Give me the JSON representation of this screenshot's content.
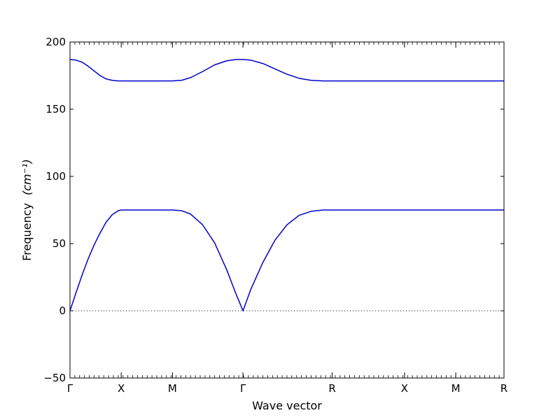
{
  "chart_data": {
    "type": "line",
    "xlabel": "Wave vector",
    "ylabel": "Frequency",
    "ylabel_unit": "(cm⁻¹)",
    "ylim": [
      -50,
      200
    ],
    "yticks": [
      -50,
      0,
      50,
      100,
      150,
      200
    ],
    "xlim": [
      0,
      7.2
    ],
    "xticks": [
      {
        "label": "Γ",
        "x": 0.0
      },
      {
        "label": "X",
        "x": 0.85
      },
      {
        "label": "M",
        "x": 1.7
      },
      {
        "label": "Γ",
        "x": 2.87
      },
      {
        "label": "R",
        "x": 4.35
      },
      {
        "label": "X",
        "x": 5.55
      },
      {
        "label": "M",
        "x": 6.4
      },
      {
        "label": "R",
        "x": 7.2
      }
    ],
    "zero_line": 0,
    "line_color": "#0000cc",
    "series": [
      {
        "x": [
          0,
          0.1,
          0.2,
          0.3,
          0.4,
          0.5,
          0.6,
          0.7,
          0.8,
          0.85,
          1.0,
          1.2,
          1.4,
          1.6,
          1.7,
          1.85,
          2.0,
          2.2,
          2.4,
          2.6,
          2.75,
          2.87,
          3.0,
          3.2,
          3.4,
          3.6,
          3.8,
          4.0,
          4.2,
          4.35,
          4.8,
          5.2,
          5.55,
          6.0,
          6.4,
          6.8,
          7.2
        ],
        "values": [
          0,
          13.5,
          26.5,
          38.5,
          49,
          58,
          66,
          71.5,
          74.5,
          75,
          75,
          75,
          75,
          75,
          75,
          74.5,
          72,
          64,
          50.5,
          30.5,
          13,
          0,
          16,
          36,
          52.5,
          64,
          71,
          74,
          75,
          75,
          75,
          75,
          75,
          75,
          75,
          75,
          75
        ]
      },
      {
        "x": [
          0,
          0.1,
          0.2,
          0.3,
          0.4,
          0.5,
          0.6,
          0.7,
          0.8,
          0.85,
          1.0,
          1.2,
          1.4,
          1.6,
          1.7,
          1.85,
          2.0,
          2.2,
          2.4,
          2.6,
          2.75,
          2.87,
          3.0,
          3.2,
          3.4,
          3.6,
          3.8,
          4.0,
          4.2,
          4.35,
          4.8,
          5.2,
          5.55,
          6.0,
          6.4,
          6.8,
          7.2
        ],
        "values": [
          187,
          186.5,
          185,
          182,
          178.5,
          175,
          172.5,
          171.5,
          171,
          171,
          171,
          171,
          171,
          171,
          171,
          171.5,
          173.5,
          178,
          183,
          186,
          187,
          187,
          186.5,
          184,
          180,
          176,
          173,
          171.5,
          171,
          171,
          171,
          171,
          171,
          171,
          171,
          171,
          171
        ]
      }
    ]
  }
}
